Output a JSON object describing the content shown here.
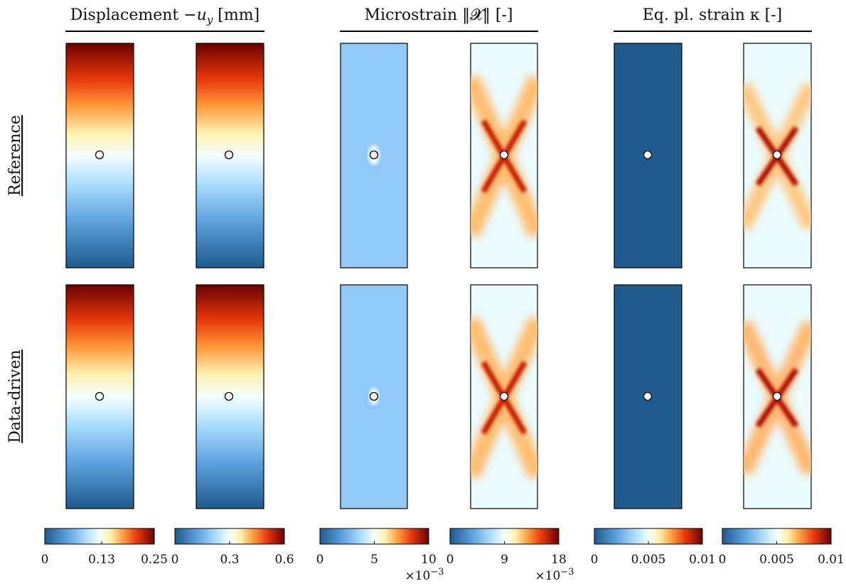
{
  "headers": [
    {
      "text": "Displacement −",
      "var": "u",
      "sub": "y",
      "unit": " [mm]"
    },
    {
      "text": "Microstrain ‖𝓧‖ [-]"
    },
    {
      "text": "Eq. pl. strain κ [-]"
    }
  ],
  "rows": [
    "Reference",
    "Data-driven"
  ],
  "colorbars": [
    {
      "lim": [
        0,
        0.25
      ],
      "ticks": [
        0,
        0.13,
        0.25
      ]
    },
    {
      "lim": [
        0,
        0.6
      ],
      "ticks": [
        0,
        0.3,
        0.6
      ]
    },
    {
      "lim": [
        0,
        10
      ],
      "ticks": [
        0,
        5,
        10
      ],
      "multiplier": "×10",
      "exponent": "−3"
    },
    {
      "lim": [
        0,
        18
      ],
      "ticks": [
        0,
        9,
        18
      ],
      "multiplier": "×10",
      "exponent": "−3"
    },
    {
      "lim": [
        0,
        0.01
      ],
      "ticks": [
        0,
        0.005,
        0.01
      ]
    },
    {
      "lim": [
        0,
        0.01
      ],
      "ticks": [
        0,
        0.005,
        0.01
      ]
    }
  ]
}
